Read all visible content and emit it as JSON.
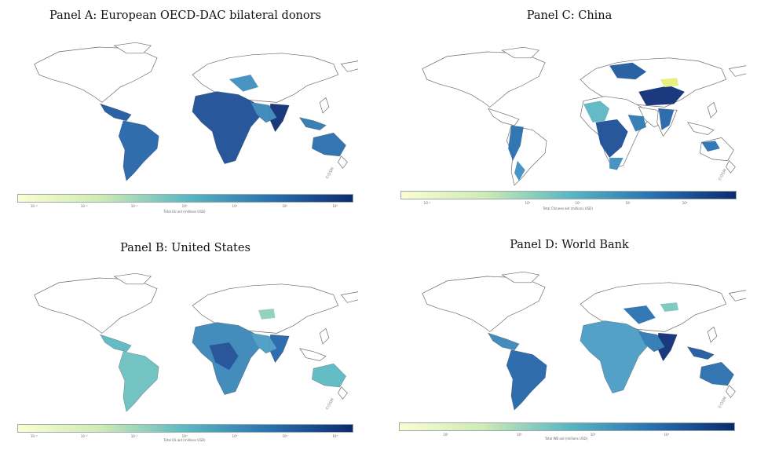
{
  "panels": [
    {
      "title": "Panel A: European OECD-DAC bilateral donors",
      "ticks": [
        "10⁻³",
        "10⁻²",
        "10⁻¹",
        "10⁰",
        "10¹",
        "10²",
        "10³"
      ],
      "colorbar_label": "Total EU aid (millions USD)"
    },
    {
      "title": "Panel C: China",
      "ticks": [
        "10⁻¹",
        "10⁰",
        "10¹",
        "10²",
        "10³"
      ],
      "colorbar_label": "Total Chinese aid (millions USD)"
    },
    {
      "title": "Panel B: United States",
      "ticks": [
        "10⁻³",
        "10⁻²",
        "10⁻¹",
        "10⁰",
        "10¹",
        "10²",
        "10³"
      ],
      "colorbar_label": "Total US aid (millions USD)"
    },
    {
      "title": "Panel D: World Bank",
      "ticks": [
        "10⁰",
        "10¹",
        "10²",
        "10³"
      ],
      "colorbar_label": "Total WB aid (millions USD)"
    }
  ],
  "colors": {
    "low": "#f7fbd0",
    "mid": "#5cb8c2",
    "high": "#0c2a6e",
    "land": "#ffffff",
    "border": "#6b6b6b"
  },
  "map_mark": "©OSM"
}
